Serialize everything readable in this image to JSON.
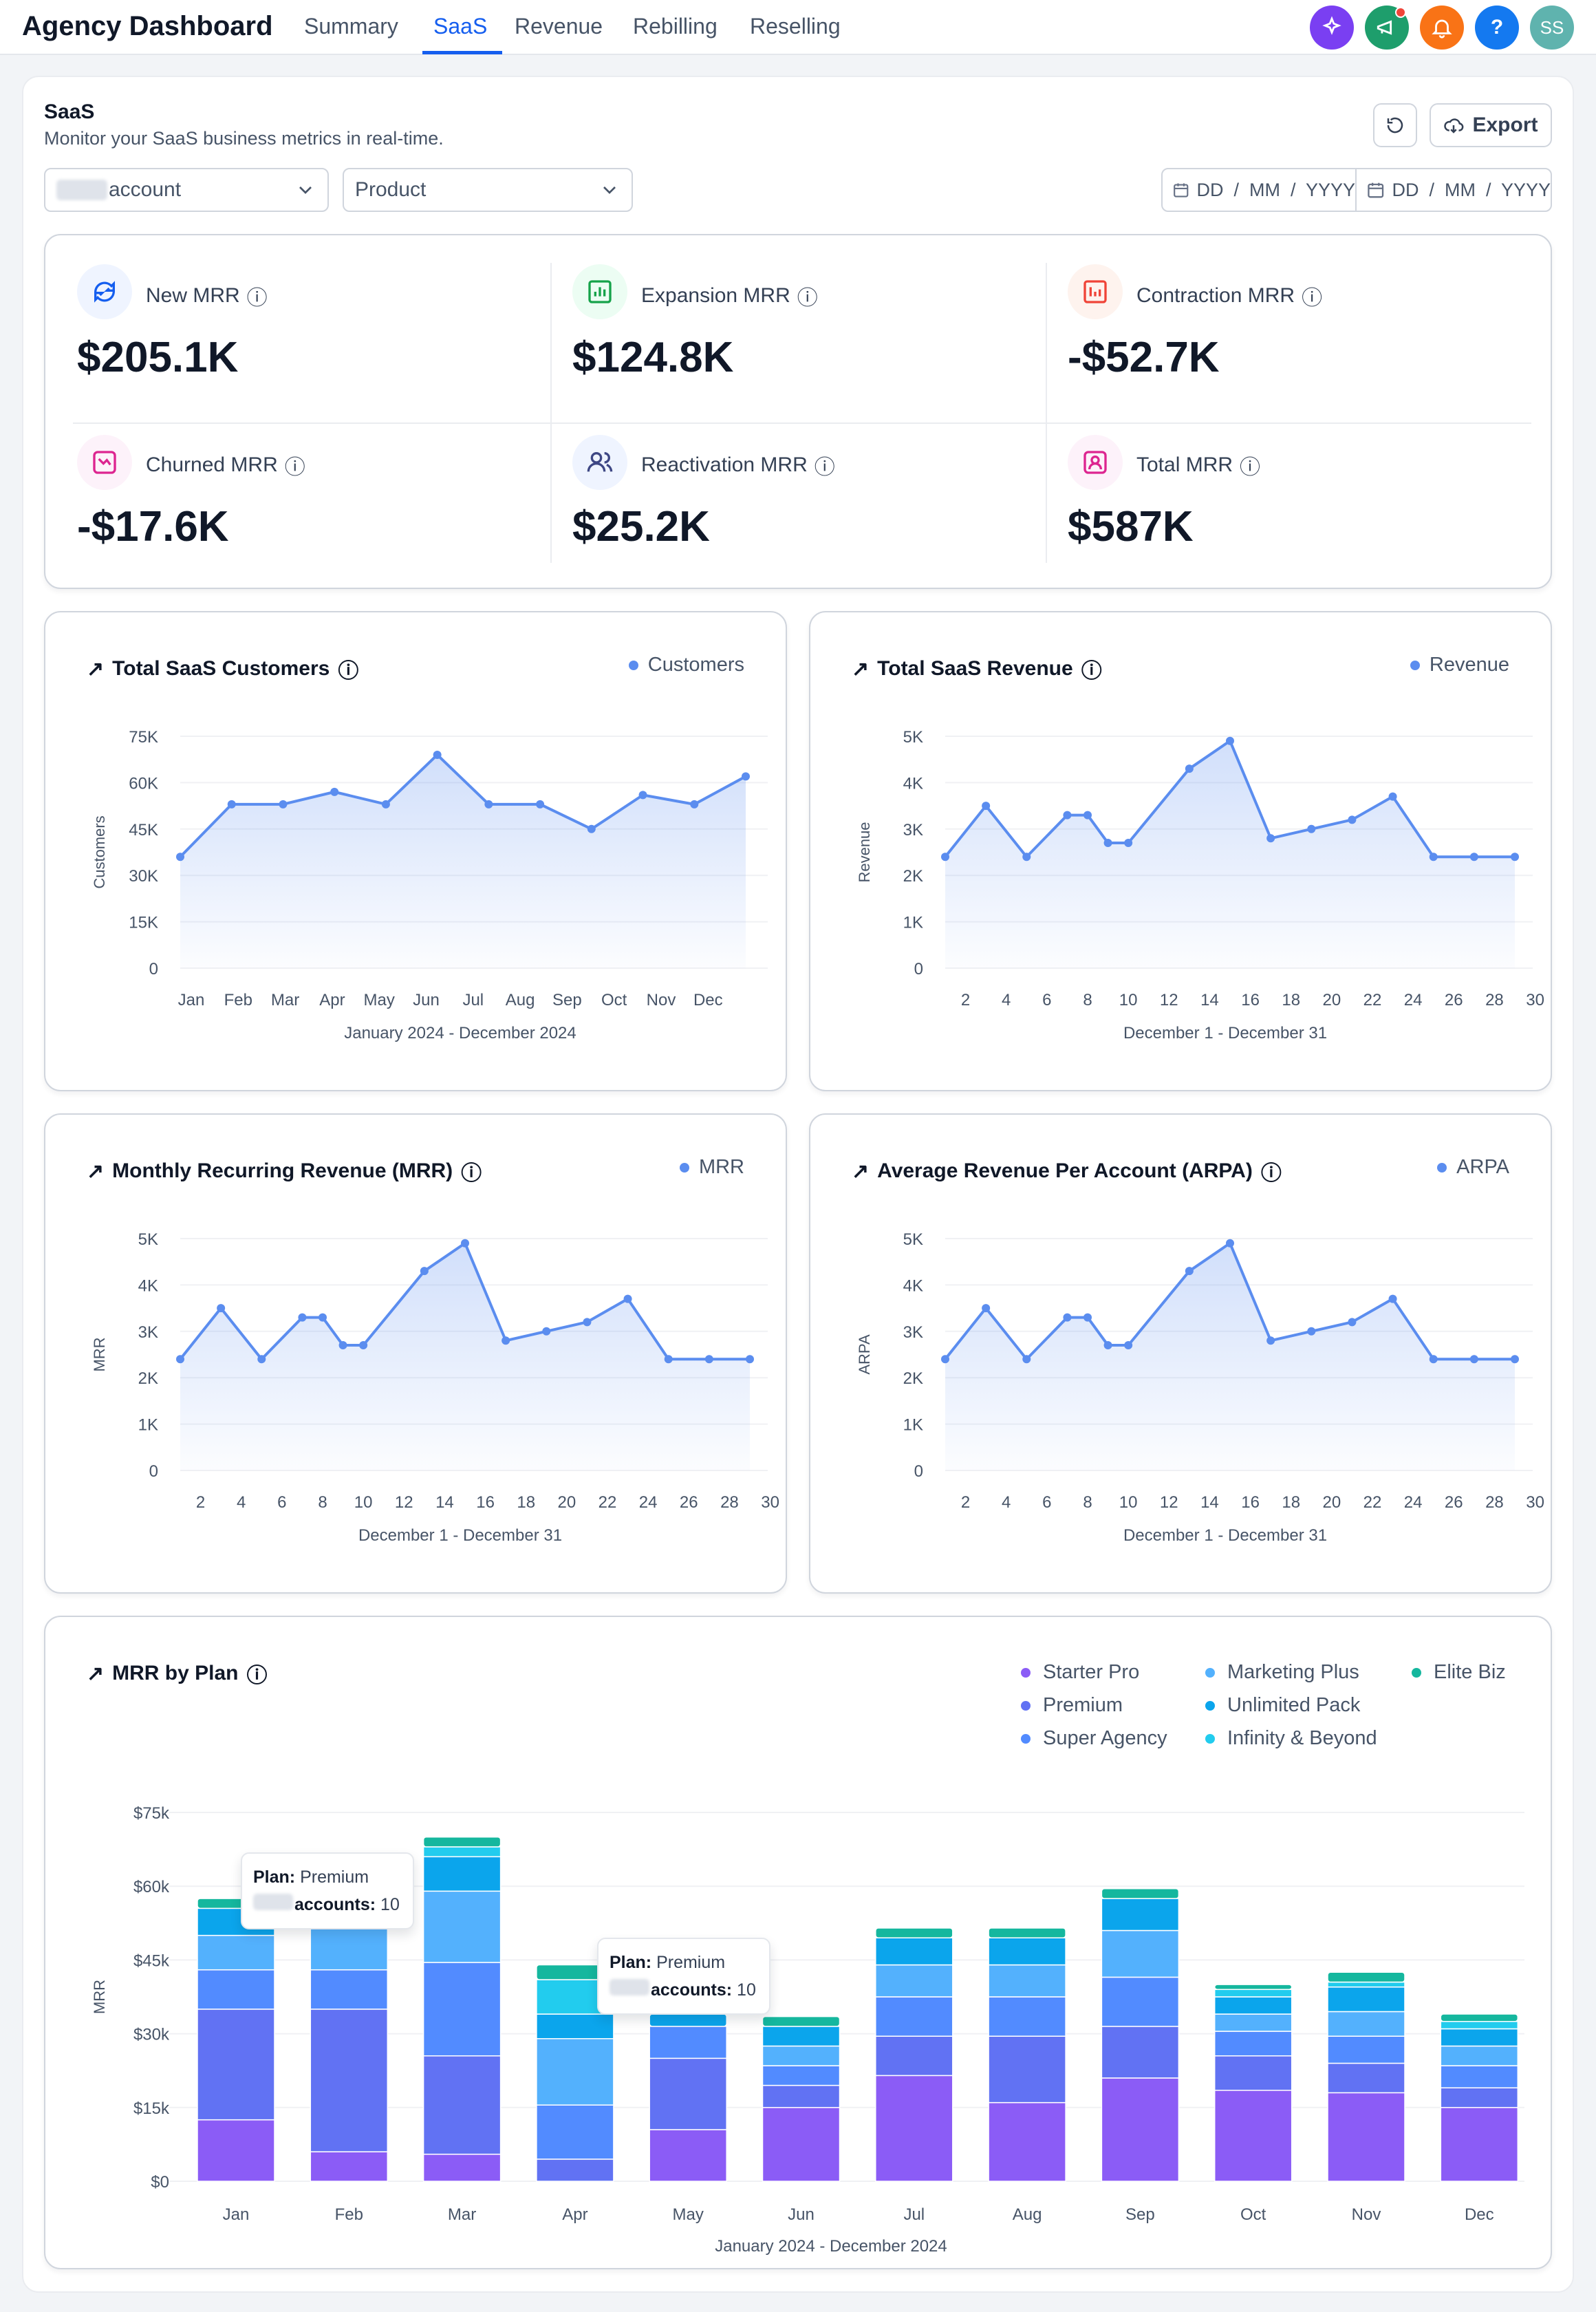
{
  "app": {
    "title": "Agency Dashboard"
  },
  "nav": {
    "tabs": [
      {
        "label": "Summary"
      },
      {
        "label": "SaaS"
      },
      {
        "label": "Revenue"
      },
      {
        "label": "Rebilling"
      },
      {
        "label": "Reselling"
      }
    ],
    "active": "SaaS"
  },
  "header_icons": {
    "ai": "sparkles-icon",
    "announce": "megaphone-icon",
    "notifications": "bell-icon",
    "help": "?",
    "avatar": "SS"
  },
  "colors": {
    "primary": "#155eef",
    "line": "#5b8def",
    "ai": "#7a3ff2",
    "announce": "#1e9e6c",
    "bell": "#f97316",
    "help": "#1479f0",
    "avatar": "#5fb3ae"
  },
  "section": {
    "title": "SaaS",
    "subtitle": "Monitor your SaaS business metrics in real-time.",
    "export_label": "Export"
  },
  "filters": {
    "account": "account",
    "product": "Product",
    "date_from": "DD  /  MM  /  YYYY",
    "date_to": "DD  /  MM  /  YYYY"
  },
  "metrics": [
    {
      "label": "New MRR",
      "value": "$205.1K",
      "icon": "refresh-dollar-icon"
    },
    {
      "label": "Expansion MRR",
      "value": "$124.8K",
      "icon": "chart-up-icon"
    },
    {
      "label": "Contraction MRR",
      "value": "-$52.7K",
      "icon": "chart-down-icon"
    },
    {
      "label": "Churned MRR",
      "value": "-$17.6K",
      "icon": "trend-down-icon"
    },
    {
      "label": "Reactivation MRR",
      "value": "$25.2K",
      "icon": "users-icon"
    },
    {
      "label": "Total MRR",
      "value": "$587K",
      "icon": "user-square-icon"
    }
  ],
  "chart_data": [
    {
      "type": "line",
      "title": "Total SaaS Customers",
      "series": [
        {
          "name": "Customers",
          "values": [
            36000,
            53000,
            53000,
            57000,
            53000,
            69000,
            53000,
            53000,
            45000,
            56000,
            53000,
            62000
          ]
        }
      ],
      "categories": [
        "Jan",
        "Feb",
        "Mar",
        "Apr",
        "May",
        "Jun",
        "Jul",
        "Aug",
        "Sep",
        "Oct",
        "Nov",
        "Dec"
      ],
      "yticks": [
        "0",
        "15K",
        "30K",
        "45K",
        "60K",
        "75K"
      ],
      "ylim": [
        0,
        75000
      ],
      "ylabel": "Customers",
      "xlabel": "January 2024 - December 2024"
    },
    {
      "type": "line",
      "title": "Total SaaS Revenue",
      "series": [
        {
          "name": "Revenue",
          "values": [
            2400,
            3500,
            2400,
            3300,
            3300,
            2700,
            2700,
            4300,
            4900,
            2800,
            3000,
            3200,
            3700,
            2400,
            2400,
            2400
          ]
        }
      ],
      "x": [
        1,
        3,
        5,
        7,
        8,
        9,
        10,
        13,
        15,
        17,
        19,
        21,
        23,
        25,
        27,
        29
      ],
      "categories": [
        "2",
        "4",
        "6",
        "8",
        "10",
        "12",
        "14",
        "16",
        "18",
        "20",
        "22",
        "24",
        "26",
        "28",
        "30"
      ],
      "yticks": [
        "0",
        "1K",
        "2K",
        "3K",
        "4K",
        "5K"
      ],
      "ylim": [
        0,
        5000
      ],
      "ylabel": "Revenue",
      "xlabel": "December 1 - December 31"
    },
    {
      "type": "line",
      "title": "Monthly Recurring Revenue (MRR)",
      "series": [
        {
          "name": "MRR",
          "values": [
            2400,
            3500,
            2400,
            3300,
            3300,
            2700,
            2700,
            4300,
            4900,
            2800,
            3000,
            3200,
            3700,
            2400,
            2400,
            2400
          ]
        }
      ],
      "x": [
        1,
        3,
        5,
        7,
        8,
        9,
        10,
        13,
        15,
        17,
        19,
        21,
        23,
        25,
        27,
        29
      ],
      "categories": [
        "2",
        "4",
        "6",
        "8",
        "10",
        "12",
        "14",
        "16",
        "18",
        "20",
        "22",
        "24",
        "26",
        "28",
        "30"
      ],
      "yticks": [
        "0",
        "1K",
        "2K",
        "3K",
        "4K",
        "5K"
      ],
      "ylim": [
        0,
        5000
      ],
      "ylabel": "MRR",
      "xlabel": "December 1 - December 31"
    },
    {
      "type": "line",
      "title": "Average Revenue Per Account (ARPA)",
      "series": [
        {
          "name": "ARPA",
          "values": [
            2400,
            3500,
            2400,
            3300,
            3300,
            2700,
            2700,
            4300,
            4900,
            2800,
            3000,
            3200,
            3700,
            2400,
            2400,
            2400
          ]
        }
      ],
      "x": [
        1,
        3,
        5,
        7,
        8,
        9,
        10,
        13,
        15,
        17,
        19,
        21,
        23,
        25,
        27,
        29
      ],
      "categories": [
        "2",
        "4",
        "6",
        "8",
        "10",
        "12",
        "14",
        "16",
        "18",
        "20",
        "22",
        "24",
        "26",
        "28",
        "30"
      ],
      "yticks": [
        "0",
        "1K",
        "2K",
        "3K",
        "4K",
        "5K"
      ],
      "ylim": [
        0,
        5000
      ],
      "ylabel": "ARPA",
      "xlabel": "December 1 - December 31"
    },
    {
      "type": "bar",
      "stacked": true,
      "title": "MRR by Plan",
      "categories": [
        "Jan",
        "Feb",
        "Mar",
        "Apr",
        "May",
        "Jun",
        "Jul",
        "Aug",
        "Sep",
        "Oct",
        "Nov",
        "Dec"
      ],
      "yticks": [
        "$0",
        "$15k",
        "$30k",
        "$45k",
        "$60k",
        "$75k"
      ],
      "ylim": [
        0,
        75000
      ],
      "ylabel": "MRR",
      "xlabel": "January 2024 - December 2024",
      "series": [
        {
          "name": "Starter Pro",
          "color": "#8b5cf6",
          "values": [
            12500,
            6000,
            5500,
            0,
            10500,
            15000,
            21500,
            16000,
            21000,
            18500,
            18000,
            15000
          ]
        },
        {
          "name": "Premium",
          "color": "#6172f3",
          "values": [
            22500,
            29000,
            20000,
            4500,
            14500,
            4500,
            8000,
            13500,
            10500,
            7000,
            6000,
            4000
          ]
        },
        {
          "name": "Super Agency",
          "color": "#528bff",
          "values": [
            8000,
            8000,
            19000,
            11000,
            6500,
            4000,
            8000,
            8000,
            10000,
            5000,
            5500,
            4500
          ]
        },
        {
          "name": "Marketing Plus",
          "color": "#53b1fd",
          "values": [
            7000,
            9000,
            14500,
            13500,
            0,
            4000,
            6500,
            6500,
            9500,
            3500,
            5000,
            4000
          ]
        },
        {
          "name": "Unlimited Pack",
          "color": "#0ba5ec",
          "values": [
            5500,
            5000,
            7000,
            5000,
            2500,
            4000,
            5500,
            5500,
            6500,
            3500,
            5000,
            3500
          ]
        },
        {
          "name": "Infinity & Beyond",
          "color": "#22ccee",
          "values": [
            0,
            0,
            2000,
            7000,
            0,
            0,
            0,
            0,
            0,
            1500,
            1000,
            1500
          ]
        },
        {
          "name": "Elite Biz",
          "color": "#15b79e",
          "values": [
            2000,
            2000,
            2000,
            3000,
            0,
            2000,
            2000,
            2000,
            2000,
            1000,
            2000,
            1500
          ]
        }
      ]
    }
  ],
  "tooltips": [
    {
      "plan_label": "Plan:",
      "plan": "Premium",
      "accounts_label": "accounts:",
      "accounts": "10"
    },
    {
      "plan_label": "Plan:",
      "plan": "Premium",
      "accounts_label": "accounts:",
      "accounts": "10"
    }
  ]
}
